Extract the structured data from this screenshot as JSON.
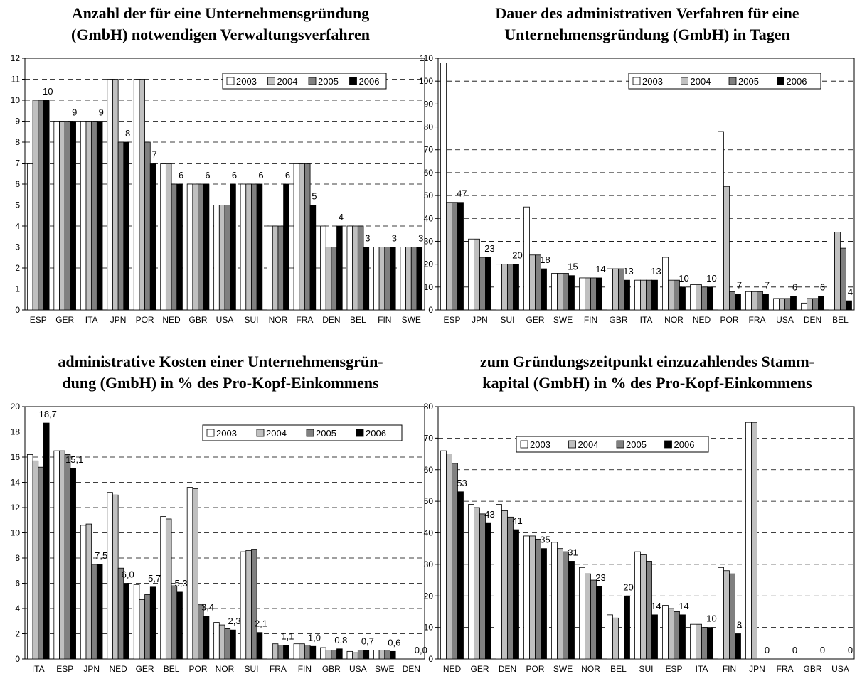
{
  "charts": [
    {
      "title": "Anzahl der für eine Unternehmensgründung\n(GmbH) notwendigen Verwaltungsverfahren",
      "type": "bar",
      "categories": [
        "ESP",
        "GER",
        "ITA",
        "JPN",
        "POR",
        "NED",
        "GBR",
        "USA",
        "SUI",
        "NOR",
        "FRA",
        "DEN",
        "BEL",
        "FIN",
        "SWE"
      ],
      "series": [
        {
          "name": "2003",
          "color": "#ffffff",
          "values": [
            7,
            9,
            9,
            11,
            11,
            7,
            6,
            5,
            6,
            4,
            7,
            4,
            4,
            3,
            3
          ]
        },
        {
          "name": "2004",
          "color": "#c0c0c0",
          "values": [
            10,
            9,
            9,
            11,
            11,
            7,
            6,
            5,
            6,
            4,
            7,
            3,
            4,
            3,
            3
          ]
        },
        {
          "name": "2005",
          "color": "#808080",
          "values": [
            10,
            9,
            9,
            8,
            8,
            6,
            6,
            5,
            6,
            4,
            7,
            3,
            4,
            3,
            3
          ]
        },
        {
          "name": "2006",
          "color": "#000000",
          "values": [
            10,
            9,
            9,
            8,
            7,
            6,
            6,
            6,
            6,
            6,
            5,
            4,
            3,
            3,
            3
          ]
        }
      ],
      "data_labels": [
        "10",
        "9",
        "9",
        "8",
        "7",
        "6",
        "6",
        "6",
        "6",
        "6",
        "5",
        "4",
        "3",
        "3",
        "3"
      ],
      "ylim": [
        0,
        12
      ],
      "yticks": [
        "0",
        "1",
        "2",
        "3",
        "4",
        "5",
        "6",
        "7",
        "8",
        "9",
        "10",
        "11",
        "12"
      ],
      "grid": true,
      "legend": "top-right"
    },
    {
      "title": "Dauer des administrativen Verfahren für eine\nUnternehmensgründung (GmbH) in Tagen",
      "type": "bar",
      "categories": [
        "ESP",
        "JPN",
        "SUI",
        "GER",
        "SWE",
        "FIN",
        "GBR",
        "ITA",
        "NOR",
        "NED",
        "POR",
        "FRA",
        "USA",
        "DEN",
        "BEL"
      ],
      "series": [
        {
          "name": "2003",
          "color": "#ffffff",
          "values": [
            108,
            31,
            20,
            45,
            16,
            14,
            18,
            13,
            23,
            11,
            78,
            8,
            5,
            3,
            34
          ]
        },
        {
          "name": "2004",
          "color": "#c0c0c0",
          "values": [
            47,
            31,
            20,
            24,
            16,
            14,
            18,
            13,
            13,
            11,
            54,
            8,
            5,
            5,
            34
          ]
        },
        {
          "name": "2005",
          "color": "#808080",
          "values": [
            47,
            23,
            20,
            24,
            16,
            14,
            18,
            13,
            13,
            10,
            8,
            8,
            5,
            5,
            27
          ]
        },
        {
          "name": "2006",
          "color": "#000000",
          "values": [
            47,
            23,
            20,
            18,
            15,
            14,
            13,
            13,
            10,
            10,
            7,
            7,
            6,
            6,
            4
          ]
        }
      ],
      "data_labels": [
        "47",
        "23",
        "20",
        "18",
        "15",
        "14",
        "13",
        "13",
        "10",
        "10",
        "7",
        "7",
        "6",
        "6",
        "4"
      ],
      "ylim": [
        0,
        110
      ],
      "yticks": [
        "0",
        "10",
        "20",
        "30",
        "40",
        "50",
        "60",
        "70",
        "80",
        "90",
        "100",
        "110"
      ],
      "grid": true,
      "legend": "top-right"
    },
    {
      "title": "administrative Kosten einer Unternehmensgrün-\ndung (GmbH) in % des Pro-Kopf-Einkommens",
      "type": "bar",
      "categories": [
        "ITA",
        "ESP",
        "JPN",
        "NED",
        "GER",
        "BEL",
        "POR",
        "NOR",
        "SUI",
        "FRA",
        "FIN",
        "GBR",
        "USA",
        "SWE",
        "DEN"
      ],
      "series": [
        {
          "name": "2003",
          "color": "#ffffff",
          "values": [
            16.2,
            16.5,
            10.6,
            13.2,
            5.9,
            11.3,
            13.6,
            2.9,
            8.5,
            1.1,
            1.2,
            0.9,
            0.6,
            0.7,
            0
          ]
        },
        {
          "name": "2004",
          "color": "#c0c0c0",
          "values": [
            15.7,
            16.5,
            10.7,
            13.0,
            4.7,
            11.1,
            13.5,
            2.7,
            8.6,
            1.2,
            1.2,
            0.7,
            0.5,
            0.7,
            0
          ]
        },
        {
          "name": "2005",
          "color": "#808080",
          "values": [
            15.2,
            16.2,
            7.5,
            7.2,
            5.1,
            5.8,
            4.3,
            2.4,
            8.7,
            1.1,
            1.1,
            0.7,
            0.7,
            0.7,
            0
          ]
        },
        {
          "name": "2006",
          "color": "#000000",
          "values": [
            18.7,
            15.1,
            7.5,
            6.0,
            5.7,
            5.3,
            3.4,
            2.3,
            2.1,
            1.1,
            1.0,
            0.8,
            0.7,
            0.6,
            0.0
          ]
        }
      ],
      "data_labels": [
        "18,7",
        "15,1",
        "7,5",
        "6,0",
        "5,7",
        "5,3",
        "3,4",
        "2,3",
        "2,1",
        "1,1",
        "1,0",
        "0,8",
        "0,7",
        "0,6",
        "0,0"
      ],
      "ylim": [
        0,
        20
      ],
      "yticks": [
        "0",
        "2",
        "4",
        "6",
        "8",
        "10",
        "12",
        "14",
        "16",
        "18",
        "20"
      ],
      "grid": true,
      "legend": "top-right"
    },
    {
      "title": "zum Gründungszeitpunkt einzuzahlendes Stamm-\nkapital (GmbH) in % des Pro-Kopf-Einkommens",
      "type": "bar",
      "categories": [
        "NED",
        "GER",
        "DEN",
        "POR",
        "SWE",
        "NOR",
        "BEL",
        "SUI",
        "ESP",
        "ITA",
        "FIN",
        "JPN",
        "FRA",
        "GBR",
        "USA"
      ],
      "series": [
        {
          "name": "2003",
          "color": "#ffffff",
          "values": [
            66,
            49,
            49,
            39,
            37,
            29,
            14,
            34,
            17,
            11,
            29,
            75,
            0,
            0,
            0
          ]
        },
        {
          "name": "2004",
          "color": "#c0c0c0",
          "values": [
            65,
            48,
            47,
            39,
            35,
            27,
            13,
            33,
            16,
            11,
            28,
            75,
            0,
            0,
            0
          ]
        },
        {
          "name": "2005",
          "color": "#808080",
          "values": [
            62,
            46,
            45,
            38,
            34,
            25,
            0,
            31,
            15,
            10,
            27,
            0,
            0,
            0,
            0
          ]
        },
        {
          "name": "2006",
          "color": "#000000",
          "values": [
            53,
            43,
            41,
            35,
            31,
            23,
            20,
            14,
            14,
            10,
            8,
            0,
            0,
            0,
            0
          ]
        }
      ],
      "data_labels": [
        "53",
        "43",
        "41",
        "35",
        "31",
        "23",
        "20",
        "14",
        "14",
        "10",
        "8",
        "0",
        "0",
        "0",
        "0"
      ],
      "ylim": [
        0,
        80
      ],
      "yticks": [
        "0",
        "10",
        "20",
        "30",
        "40",
        "50",
        "60",
        "70",
        "80"
      ],
      "grid": true,
      "legend": "top-left"
    }
  ]
}
